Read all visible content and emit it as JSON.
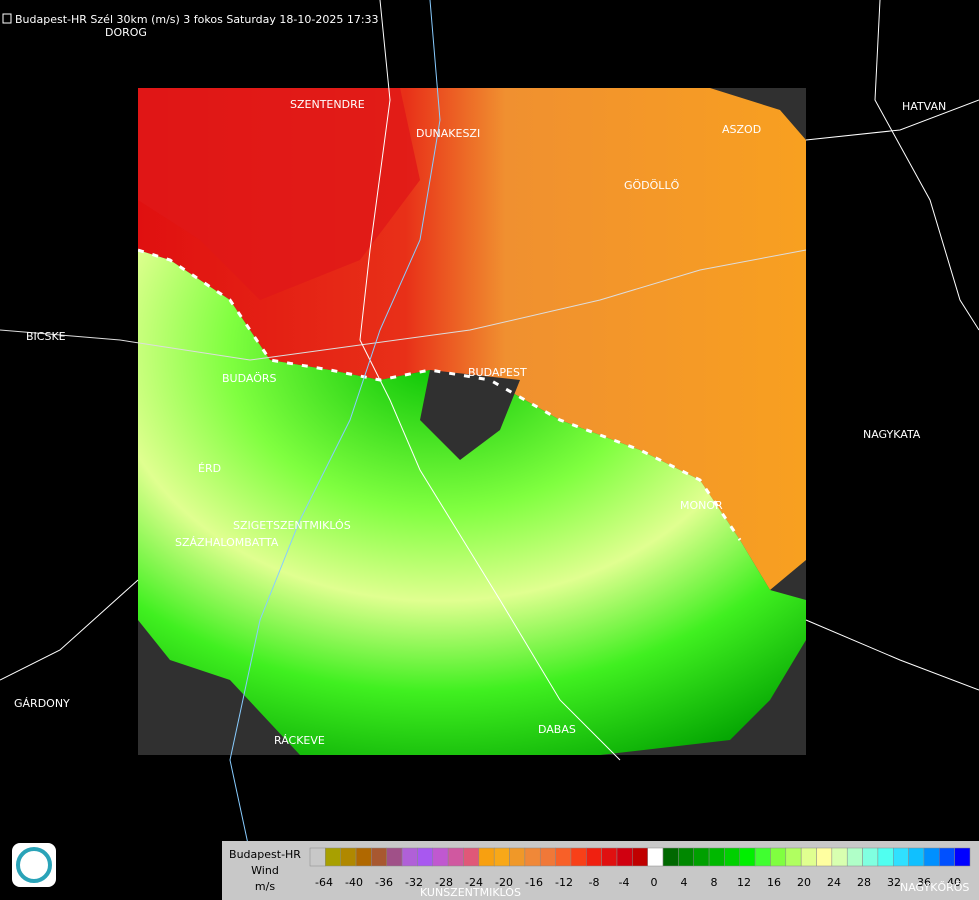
{
  "header": {
    "title": "Budapest-HR Szél 30km (m/s) 3 fokos Saturday 18-10-2025 17:33"
  },
  "places": [
    "DOROG",
    "SZENTENDRE",
    "DUNAKESZI",
    "ASZOD",
    "HATVAN",
    "GÖDÖLLŐ",
    "BICSKE",
    "BUDAÖRS",
    "BUDAPEST",
    "NAGYKATA",
    "ÉRD",
    "MONOR",
    "SZIGETSZENTMIKLÓS",
    "SZÁZHALOMBATTA",
    "GÁRDONY",
    "RÁCKEVE",
    "DABAS",
    "KUNSZENTMIKLÓS",
    "NAGYKŐRÖS"
  ],
  "legend": {
    "lines": [
      "Budapest-HR",
      "Wind",
      "m/s"
    ],
    "ticks": [
      -64,
      -40,
      -36,
      -32,
      -28,
      -24,
      -20,
      -16,
      -12,
      -8,
      -4,
      0,
      4,
      8,
      12,
      16,
      20,
      24,
      28,
      32,
      36,
      40
    ],
    "colors": [
      "#c8c8c8",
      "#a8a000",
      "#b08800",
      "#b06800",
      "#a85830",
      "#a05088",
      "#b060d8",
      "#a858f0",
      "#c058d0",
      "#d058a0",
      "#e05878",
      "#f8a010",
      "#f8a818",
      "#f09828",
      "#f08838",
      "#f07838",
      "#f86028",
      "#f84018",
      "#f02010",
      "#e01010",
      "#d00010",
      "#c00000",
      "#ffffff",
      "#006800",
      "#008800",
      "#00a000",
      "#00b800",
      "#00d000",
      "#00f000",
      "#40ff30",
      "#80ff40",
      "#b0ff60",
      "#e0ff90",
      "#ffffa0",
      "#d8ffb0",
      "#b0ffc8",
      "#80ffe0",
      "#50fff0",
      "#30e0ff",
      "#10c0ff",
      "#0090ff",
      "#0050ff",
      "#0000ff"
    ]
  }
}
